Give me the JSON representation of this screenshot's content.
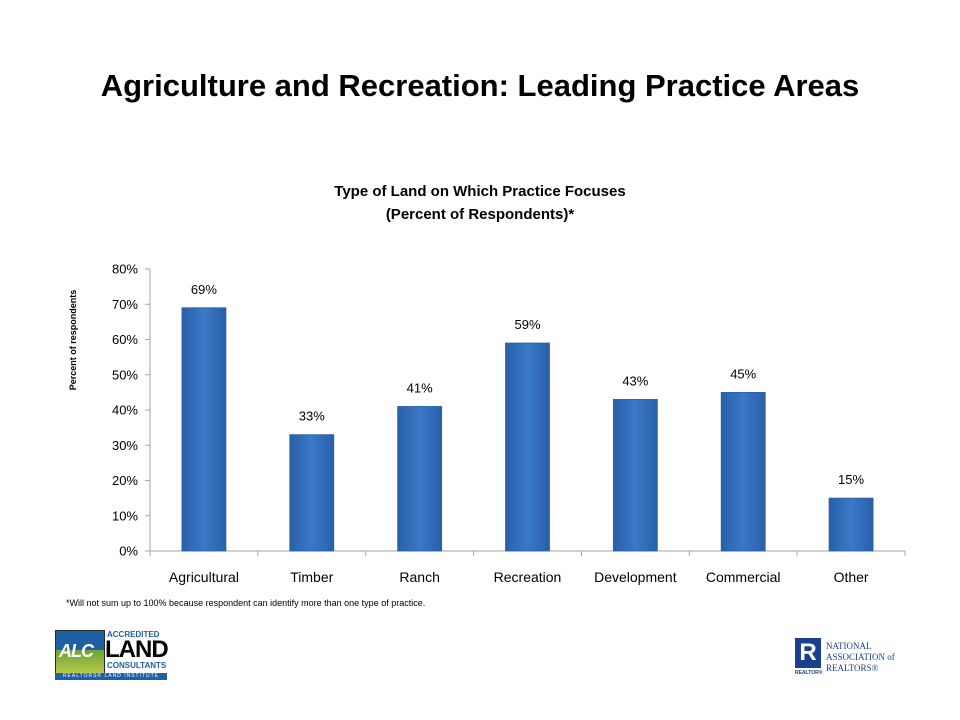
{
  "page": {
    "title": "Agriculture and Recreation:  Leading Practice Areas",
    "footnote": "*Will not sum up to 100% because respondent can identify more than one type of practice."
  },
  "logos": {
    "alc": {
      "letters": "ALC",
      "accredited": "ACCREDITED",
      "land": "LAND",
      "consultants": "CONSULTANTS",
      "institute": "REALTORS® LAND INSTITUTE"
    },
    "nar": {
      "letter": "R",
      "realtor": "REALTOR®",
      "line1": "NATIONAL",
      "line2": "ASSOCIATION of",
      "line3": "REALTORS®"
    }
  },
  "colors": {
    "bar": "#3a78c9",
    "bar_dark": "#2a5fa8",
    "axis": "#a6a6a6"
  },
  "chart_data": {
    "type": "bar",
    "title_line1": "Type of Land on Which Practice Focuses",
    "title_line2": "(Percent of Respondents)*",
    "xlabel": "",
    "ylabel": "Percent of respondents",
    "categories": [
      "Agricultural",
      "Timber",
      "Ranch",
      "Recreation",
      "Development",
      "Commercial",
      "Other"
    ],
    "values": [
      69,
      33,
      41,
      59,
      43,
      45,
      15
    ],
    "data_labels": [
      "69%",
      "33%",
      "41%",
      "59%",
      "43%",
      "45%",
      "15%"
    ],
    "ylim": [
      0,
      80
    ],
    "yticks": [
      0,
      10,
      20,
      30,
      40,
      50,
      60,
      70,
      80
    ],
    "ytick_labels": [
      "0%",
      "10%",
      "20%",
      "30%",
      "40%",
      "50%",
      "60%",
      "70%",
      "80%"
    ],
    "grid": false,
    "legend": "none"
  }
}
